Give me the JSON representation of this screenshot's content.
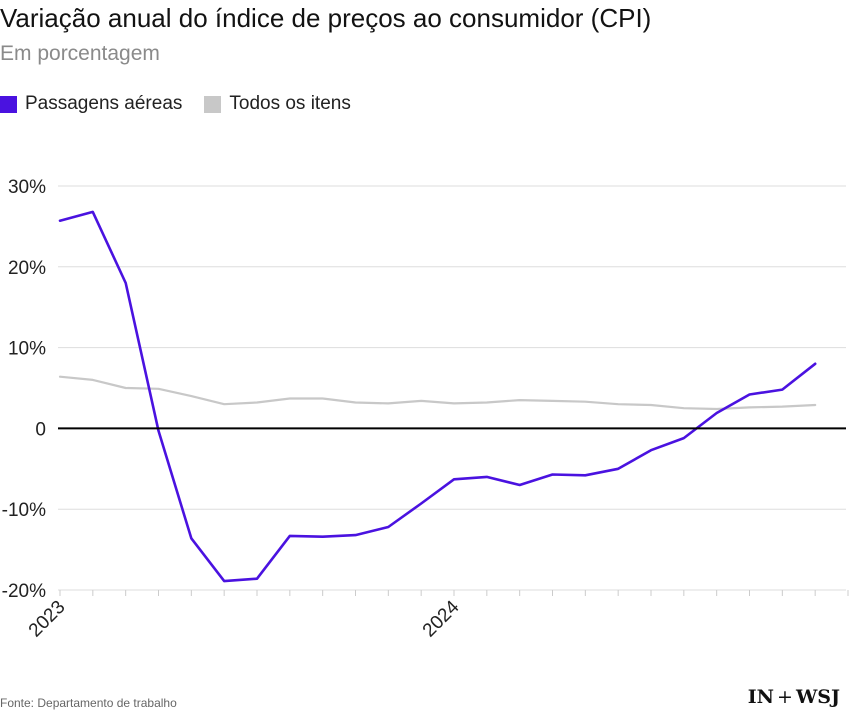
{
  "header": {
    "title": "Variação anual do índice de preços ao consumidor (CPI)",
    "subtitle": "Em porcentagem"
  },
  "legend": {
    "items": [
      {
        "label": "Passagens aéreas",
        "color": "#4a12e0"
      },
      {
        "label": "Todos os itens",
        "color": "#c8c8c8"
      }
    ]
  },
  "footer": {
    "source": "Fonte: Departamento de trabalho",
    "logo_left": "IN",
    "logo_plus": "+",
    "logo_right": "WSJ"
  },
  "chart_data": {
    "type": "line",
    "x": [
      "2023-01",
      "2023-02",
      "2023-03",
      "2023-04",
      "2023-05",
      "2023-06",
      "2023-07",
      "2023-08",
      "2023-09",
      "2023-10",
      "2023-11",
      "2023-12",
      "2024-01",
      "2024-02",
      "2024-03",
      "2024-04",
      "2024-05",
      "2024-06",
      "2024-07",
      "2024-08",
      "2024-09",
      "2024-10",
      "2024-11",
      "2024-12",
      "2025-01"
    ],
    "series": [
      {
        "name": "Passagens aéreas",
        "color": "#4a12e0",
        "values": [
          25.7,
          26.8,
          18.0,
          -0.3,
          -13.6,
          -18.9,
          -18.6,
          -13.3,
          -13.4,
          -13.2,
          -12.2,
          -9.3,
          -6.3,
          -6.0,
          -7.0,
          -5.7,
          -5.8,
          -5.0,
          -2.7,
          -1.2,
          1.9,
          4.2,
          4.8,
          8.0,
          null
        ]
      },
      {
        "name": "Todos os itens",
        "color": "#c8c8c8",
        "values": [
          6.4,
          6.0,
          5.0,
          4.9,
          4.0,
          3.0,
          3.2,
          3.7,
          3.7,
          3.2,
          3.1,
          3.4,
          3.1,
          3.2,
          3.5,
          3.4,
          3.3,
          3.0,
          2.9,
          2.5,
          2.4,
          2.6,
          2.7,
          2.9,
          null
        ]
      }
    ],
    "yticks": [
      30,
      20,
      10,
      0,
      -10,
      -20
    ],
    "ytick_labels": [
      "30%",
      "20%",
      "10%",
      "0",
      "-10%",
      "-20%"
    ],
    "xtick_labels": [
      {
        "x": "2023-01",
        "label": "2023"
      },
      {
        "x": "2024-01",
        "label": "2024"
      }
    ],
    "ylim": [
      -20,
      30
    ],
    "grid": true
  }
}
